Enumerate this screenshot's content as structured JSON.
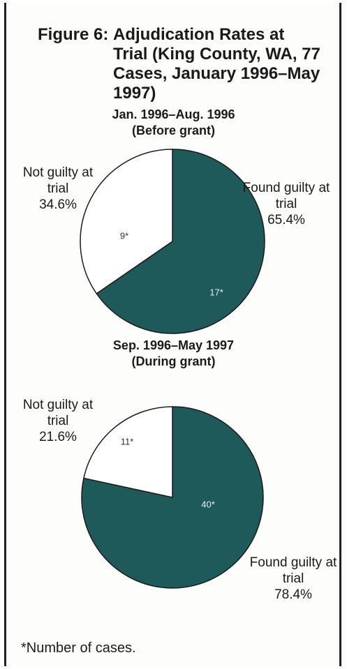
{
  "figure": {
    "label": "Figure 6:",
    "title": "Adjudication Rates at Trial (King County, WA, 77 Cases, January 1996–May 1997)",
    "footnote": "*Number of cases."
  },
  "chart_data": [
    {
      "type": "pie",
      "title": "Jan. 1996–Aug. 1996",
      "subtitle": "(Before grant)",
      "categories": [
        "Found guilty at trial",
        "Not guilty at trial"
      ],
      "values": [
        65.4,
        34.6
      ],
      "value_labels": [
        "65.4%",
        "34.6%"
      ],
      "counts": [
        17,
        9
      ],
      "count_labels": [
        "17*",
        "9*"
      ],
      "colors": [
        "#1f5a5b",
        "#ffffff"
      ]
    },
    {
      "type": "pie",
      "title": "Sep. 1996–May 1997",
      "subtitle": "(During grant)",
      "categories": [
        "Found guilty at trial",
        "Not guilty at trial"
      ],
      "values": [
        78.4,
        21.6
      ],
      "value_labels": [
        "78.4%",
        "21.6%"
      ],
      "counts": [
        40,
        11
      ],
      "count_labels": [
        "40*",
        "11*"
      ],
      "colors": [
        "#1f5a5b",
        "#ffffff"
      ]
    }
  ]
}
